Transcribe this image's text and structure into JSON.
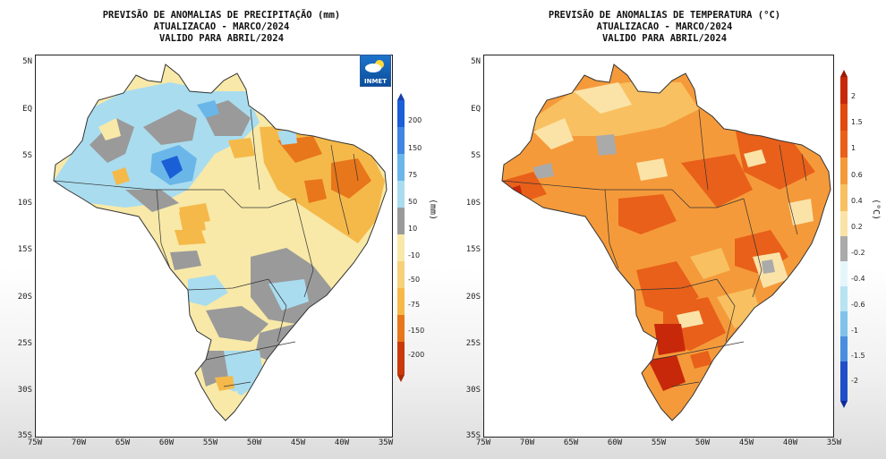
{
  "precip": {
    "title_line1": "PREVISÃO DE ANOMALIAS DE PRECIPITAÇÃO (mm)",
    "title_line2": "ATUALIZACAO - MARCO/2024",
    "title_line3": "VALIDO PARA ABRIL/2024",
    "unit": "(mm)",
    "logo_text": "INMET",
    "colorbar_ticks": [
      "200",
      "150",
      "75",
      "50",
      "10",
      "-10",
      "-50",
      "-75",
      "-150",
      "-200"
    ],
    "colors": {
      "wet_strong": "#1a5fd6",
      "wet": "#6ab6e8",
      "wet_light": "#a9dcef",
      "neutral": "#9a9a9a",
      "dry_light": "#f8e9a8",
      "dry": "#f5b94a",
      "dry_strong": "#e8761a",
      "dry_extreme": "#c83a0a"
    }
  },
  "temp": {
    "title_line1": "PREVISÃO DE ANOMALIAS DE TEMPERATURA (°C)",
    "title_line2": "ATUALIZACAO - MARCO/2024",
    "title_line3": "VALIDO PARA ABRIL/2024",
    "unit": "(°C)",
    "colorbar_ticks": [
      "2",
      "1.5",
      "1",
      "0.6",
      "0.4",
      "0.2",
      "-0.2",
      "-0.4",
      "-0.6",
      "-1",
      "-1.5",
      "-2"
    ],
    "colors": {
      "hot_extreme": "#c8280a",
      "hot": "#e8601a",
      "warm": "#f59a3a",
      "mild": "#f8c060",
      "light": "#fbe3a8",
      "neutral": "#aaaaaa"
    }
  },
  "lat_labels": [
    "5N",
    "EQ",
    "5S",
    "10S",
    "15S",
    "20S",
    "25S",
    "30S",
    "35S"
  ],
  "lon_labels": [
    "75W",
    "70W",
    "65W",
    "60W",
    "55W",
    "50W",
    "45W",
    "40W",
    "35W"
  ]
}
